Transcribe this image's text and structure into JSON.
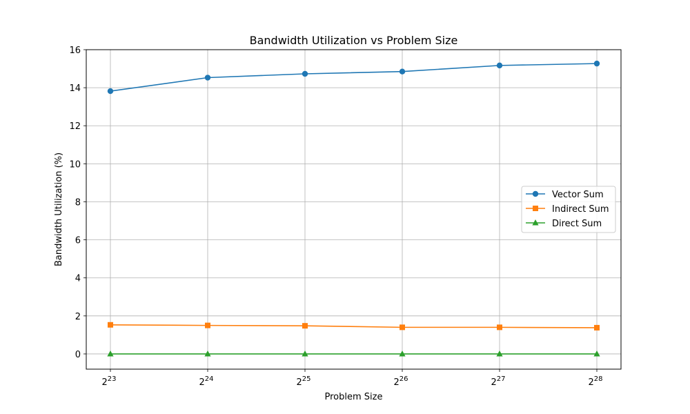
{
  "chart_data": {
    "type": "line",
    "title": "Bandwidth Utilization vs Problem Size",
    "xlabel": "Problem Size",
    "ylabel": "Bandwidth Utilization (%)",
    "x_scale": "log2",
    "x": [
      8388608,
      16777216,
      33554432,
      67108864,
      134217728,
      268435456
    ],
    "x_tick_labels": [
      {
        "base": "2",
        "exp": "23"
      },
      {
        "base": "2",
        "exp": "24"
      },
      {
        "base": "2",
        "exp": "25"
      },
      {
        "base": "2",
        "exp": "26"
      },
      {
        "base": "2",
        "exp": "27"
      },
      {
        "base": "2",
        "exp": "28"
      }
    ],
    "y_ticks": [
      0,
      2,
      4,
      6,
      8,
      10,
      12,
      14,
      16
    ],
    "ylim": [
      -0.8,
      16
    ],
    "grid": true,
    "legend_position": "center-right",
    "series": [
      {
        "name": "Vector Sum",
        "color": "#1f77b4",
        "marker": "circle",
        "values": [
          13.82,
          14.53,
          14.73,
          14.85,
          15.17,
          15.27
        ]
      },
      {
        "name": "Indirect Sum",
        "color": "#ff7f0e",
        "marker": "square",
        "values": [
          1.53,
          1.5,
          1.48,
          1.4,
          1.4,
          1.38
        ]
      },
      {
        "name": "Direct Sum",
        "color": "#2ca02c",
        "marker": "triangle",
        "values": [
          0.0,
          0.0,
          0.0,
          0.0,
          0.0,
          0.0
        ]
      }
    ]
  }
}
